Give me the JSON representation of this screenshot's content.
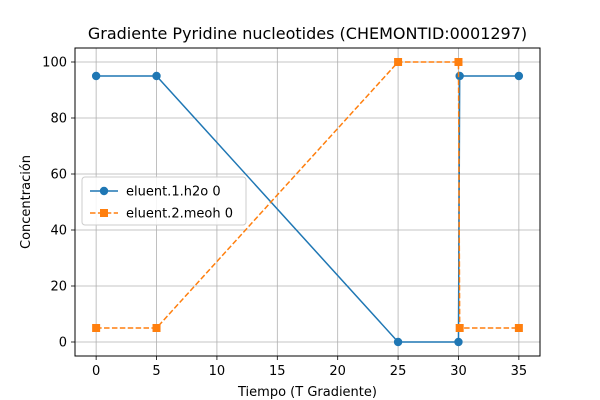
{
  "chart_data": {
    "type": "line",
    "title": "Gradiente Pyridine nucleotides (CHEMONTID:0001297)",
    "xlabel": "Tiempo (T Gradiente)",
    "ylabel": "Concentración",
    "xlim": [
      -1.75,
      36.75
    ],
    "ylim": [
      -5,
      105
    ],
    "xticks": [
      0,
      5,
      10,
      15,
      20,
      25,
      30,
      35
    ],
    "yticks": [
      0,
      20,
      40,
      60,
      80,
      100
    ],
    "grid": true,
    "legend_position": "center-left",
    "series": [
      {
        "name": "eluent.1.h2o 0",
        "color": "#1f77b4",
        "line_style": "solid",
        "marker": "circle",
        "x": [
          0,
          5,
          25,
          30,
          30.1,
          35
        ],
        "y": [
          95,
          95,
          0,
          0,
          95,
          95
        ]
      },
      {
        "name": "eluent.2.meoh 0",
        "color": "#ff7f0e",
        "line_style": "dashed",
        "marker": "square",
        "x": [
          0,
          5,
          25,
          30,
          30.1,
          35
        ],
        "y": [
          5,
          5,
          100,
          100,
          5,
          5
        ]
      }
    ]
  }
}
